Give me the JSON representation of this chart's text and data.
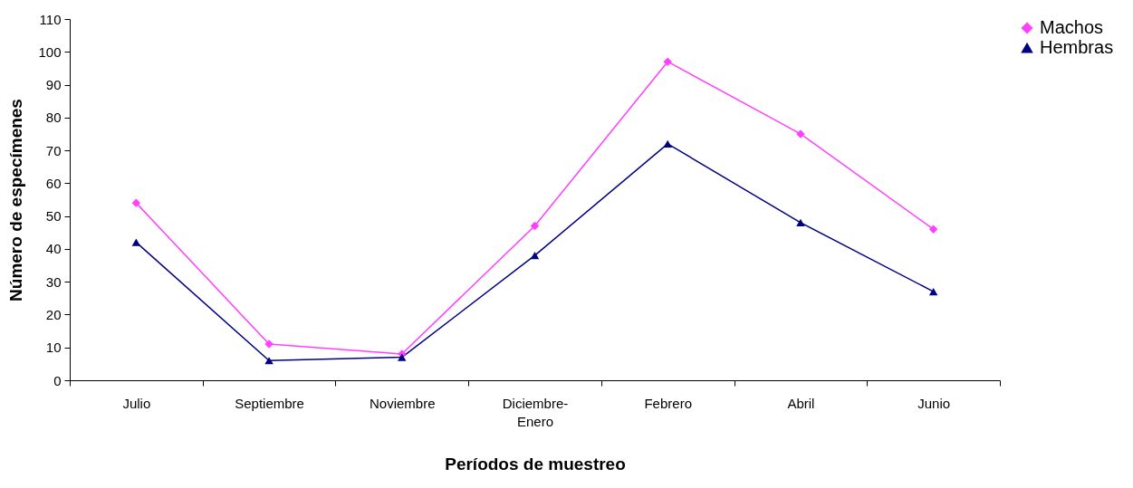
{
  "chart_data": {
    "type": "line",
    "xlabel": "Períodos de muestreo",
    "ylabel": "Número de especímenes",
    "categories": [
      "Julio",
      "Septiembre",
      "Noviembre",
      "Diciembre-Enero",
      "Febrero",
      "Abril",
      "Junio"
    ],
    "series": [
      {
        "name": "Machos",
        "color": "#ff40ff",
        "marker": "diamond",
        "values": [
          54,
          11,
          8,
          47,
          97,
          75,
          46
        ]
      },
      {
        "name": "Hembras",
        "color": "#000080",
        "marker": "triangle",
        "values": [
          42,
          6,
          7,
          38,
          72,
          48,
          27
        ]
      }
    ],
    "ylim": [
      0,
      110
    ],
    "yticks": [
      0,
      10,
      20,
      30,
      40,
      50,
      60,
      70,
      80,
      90,
      100,
      110
    ],
    "grid": false,
    "legend": "right"
  }
}
